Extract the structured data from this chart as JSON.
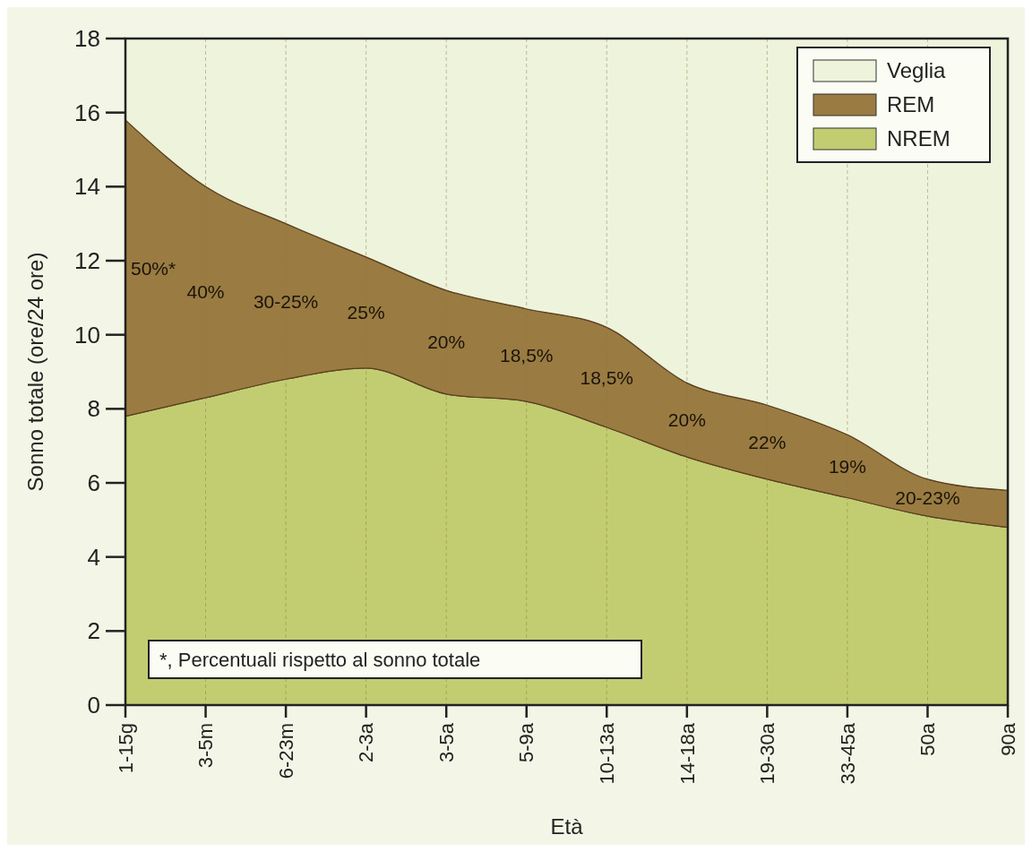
{
  "chart_data": {
    "type": "area",
    "stacked": true,
    "xlabel": "Età",
    "ylabel": "Sonno totale (ore/24 ore)",
    "categories": [
      "1-15g",
      "3-5m",
      "6-23m",
      "2-3a",
      "3-5a",
      "5-9a",
      "10-13a",
      "14-18a",
      "19-30a",
      "33-45a",
      "50a",
      "90a"
    ],
    "series": [
      {
        "name": "NREM",
        "color": "#c2cd72",
        "values": [
          7.8,
          8.3,
          8.8,
          9.1,
          8.4,
          8.2,
          7.5,
          6.7,
          6.1,
          5.6,
          5.1,
          4.8
        ]
      },
      {
        "name": "REM",
        "color": "#9a7b42",
        "values": [
          8.0,
          5.7,
          4.2,
          3.0,
          2.8,
          2.5,
          2.7,
          2.0,
          2.0,
          1.7,
          1.0,
          1.0
        ]
      },
      {
        "name": "Veglia",
        "color": "#eef3dc",
        "values": [
          2.2,
          4.0,
          5.0,
          5.9,
          6.8,
          7.3,
          7.8,
          9.3,
          9.9,
          10.7,
          11.9,
          12.2
        ]
      }
    ],
    "ylim": [
      0,
      18
    ],
    "yticks": [
      0,
      2,
      4,
      6,
      8,
      10,
      12,
      14,
      16,
      18
    ],
    "grid": "x",
    "legend": "top right",
    "annotations": [
      "*, Percentuali rispetto al sonno totale",
      "50%*",
      "40%",
      "30-25%",
      "25%",
      "20%",
      "18,5%",
      "18,5%",
      "20%",
      "22%",
      "19%",
      "20-23%"
    ]
  }
}
